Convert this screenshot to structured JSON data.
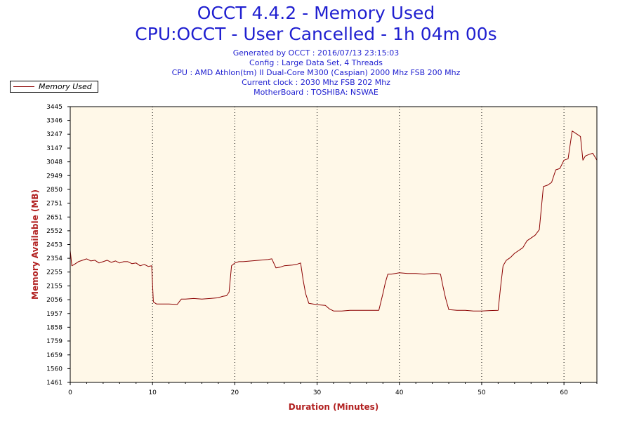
{
  "header": {
    "title": "OCCT 4.4.2 - Memory Used",
    "subtitle": "CPU:OCCT - User Cancelled - 1h 04m 00s",
    "info_lines": [
      "Generated by OCCT : 2016/07/13 23:15:03",
      "Config : Large Data Set, 4 Threads",
      "CPU : AMD Athlon(tm) II Dual-Core M300 (Caspian) 2000 Mhz FSB 200 Mhz",
      "Current clock : 2030 Mhz FSB 202 Mhz",
      "MotherBoard : TOSHIBA: NSWAE"
    ]
  },
  "legend": {
    "label": "Memory Used"
  },
  "colors": {
    "series": "#8b0000",
    "plot_background": "#fff8e8",
    "title": "#1f1fd0",
    "axis_title": "#b22222"
  },
  "chart_data": {
    "type": "line",
    "title": "OCCT 4.4.2 - Memory Used",
    "xlabel": "Duration (Minutes)",
    "ylabel": "Memory Available (MB)",
    "xlim": [
      0,
      64
    ],
    "ylim": [
      1461,
      3445
    ],
    "x_ticks": [
      "0",
      "10",
      "20",
      "30",
      "40",
      "50",
      "60"
    ],
    "y_ticks": [
      "3445",
      "3346",
      "3247",
      "3147",
      "3048",
      "2949",
      "2850",
      "2751",
      "2651",
      "2552",
      "2453",
      "2354",
      "2255",
      "2155",
      "2056",
      "1957",
      "1858",
      "1759",
      "1659",
      "1560",
      "1461"
    ],
    "grid": "vertical dotted",
    "series": [
      {
        "name": "Memory Used",
        "x": [
          0,
          0.2,
          0.5,
          1,
          1.5,
          2,
          2.5,
          3,
          3.5,
          4,
          4.5,
          5,
          5.5,
          6,
          6.5,
          7,
          7.5,
          8,
          8.5,
          9,
          9.5,
          9.9,
          10.1,
          10.5,
          11,
          12,
          13,
          13.5,
          14,
          15,
          16,
          17,
          18,
          18.5,
          19,
          19.3,
          19.6,
          20,
          20.5,
          21,
          22,
          23,
          24,
          24.5,
          25,
          25.5,
          26,
          27,
          27.5,
          28,
          28.3,
          28.6,
          29,
          30,
          31,
          31.5,
          32,
          33,
          34,
          35,
          36,
          37,
          37.5,
          38,
          38.3,
          38.6,
          39,
          40,
          41,
          42,
          43,
          44,
          44.5,
          45,
          45.3,
          45.6,
          46,
          47,
          48,
          49,
          50,
          51,
          52,
          52.3,
          52.6,
          53,
          53.5,
          54,
          55,
          55.5,
          56,
          56.5,
          57,
          57.5,
          58,
          58.5,
          59,
          59.5,
          60,
          60.5,
          61,
          61.5,
          62,
          62.3,
          62.6,
          63,
          63.5,
          64
        ],
        "y": [
          2410,
          2300,
          2310,
          2330,
          2340,
          2350,
          2335,
          2340,
          2320,
          2330,
          2340,
          2325,
          2335,
          2320,
          2330,
          2330,
          2315,
          2320,
          2300,
          2310,
          2295,
          2300,
          2040,
          2025,
          2025,
          2025,
          2022,
          2060,
          2060,
          2065,
          2060,
          2065,
          2070,
          2080,
          2085,
          2110,
          2300,
          2320,
          2330,
          2330,
          2335,
          2340,
          2345,
          2350,
          2285,
          2290,
          2300,
          2305,
          2310,
          2320,
          2200,
          2100,
          2030,
          2020,
          2015,
          1990,
          1975,
          1975,
          1980,
          1980,
          1980,
          1980,
          1980,
          2100,
          2180,
          2240,
          2240,
          2250,
          2245,
          2245,
          2240,
          2245,
          2245,
          2240,
          2150,
          2070,
          1985,
          1980,
          1980,
          1975,
          1975,
          1978,
          1980,
          2150,
          2300,
          2340,
          2360,
          2390,
          2430,
          2480,
          2500,
          2520,
          2560,
          2870,
          2880,
          2900,
          2990,
          3000,
          3060,
          3070,
          3270,
          3250,
          3230,
          3060,
          3090,
          3100,
          3110,
          3060
        ]
      }
    ]
  }
}
